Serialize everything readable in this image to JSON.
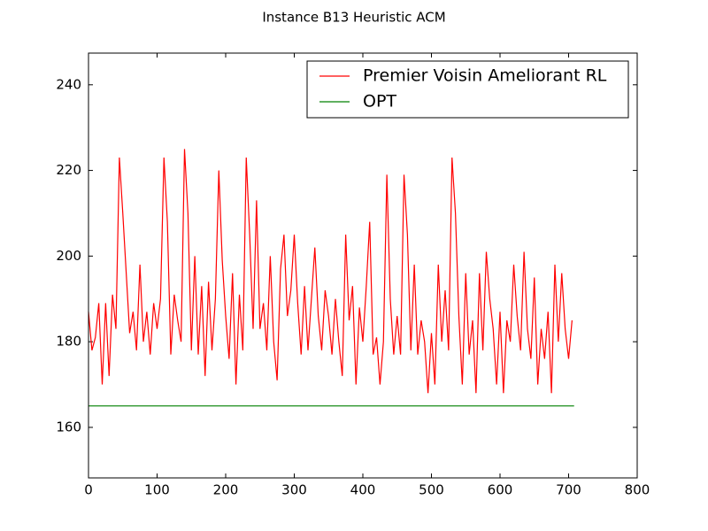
{
  "chart_data": {
    "type": "line",
    "title": "Instance B13 Heuristic ACM",
    "x": [
      0,
      5,
      10,
      15,
      20,
      25,
      30,
      35,
      40,
      45,
      50,
      55,
      60,
      65,
      70,
      75,
      80,
      85,
      90,
      95,
      100,
      105,
      110,
      115,
      120,
      125,
      130,
      135,
      140,
      145,
      150,
      155,
      160,
      165,
      170,
      175,
      180,
      185,
      190,
      195,
      200,
      205,
      210,
      215,
      220,
      225,
      230,
      235,
      240,
      245,
      250,
      255,
      260,
      265,
      270,
      275,
      280,
      285,
      290,
      295,
      300,
      305,
      310,
      315,
      320,
      325,
      330,
      335,
      340,
      345,
      350,
      355,
      360,
      365,
      370,
      375,
      380,
      385,
      390,
      395,
      400,
      405,
      410,
      415,
      420,
      425,
      430,
      435,
      440,
      445,
      450,
      455,
      460,
      465,
      470,
      475,
      480,
      485,
      490,
      495,
      500,
      505,
      510,
      515,
      520,
      525,
      530,
      535,
      540,
      545,
      550,
      555,
      560,
      565,
      570,
      575,
      580,
      585,
      590,
      595,
      600,
      605,
      610,
      615,
      620,
      625,
      630,
      635,
      640,
      645,
      650,
      655,
      660,
      665,
      670,
      675,
      680,
      685,
      690,
      695,
      700,
      705
    ],
    "series": [
      {
        "name": "Premier Voisin Ameliorant RL",
        "color": "#ff0000",
        "values": [
          187,
          178,
          181,
          189,
          170,
          189,
          172,
          191,
          183,
          223,
          210,
          196,
          182,
          187,
          178,
          198,
          180,
          187,
          177,
          189,
          183,
          190,
          223,
          208,
          177,
          191,
          185,
          180,
          225,
          210,
          178,
          200,
          177,
          193,
          172,
          194,
          178,
          190,
          220,
          199,
          186,
          176,
          196,
          170,
          191,
          178,
          223,
          205,
          183,
          213,
          183,
          189,
          178,
          200,
          180,
          171,
          197,
          205,
          186,
          192,
          205,
          189,
          177,
          193,
          178,
          190,
          202,
          186,
          178,
          192,
          186,
          177,
          190,
          180,
          172,
          205,
          185,
          193,
          170,
          188,
          180,
          193,
          208,
          177,
          181,
          170,
          180,
          219,
          190,
          177,
          186,
          177,
          219,
          205,
          178,
          198,
          177,
          185,
          180,
          168,
          182,
          170,
          198,
          180,
          192,
          178,
          223,
          210,
          186,
          170,
          196,
          177,
          185,
          168,
          196,
          178,
          201,
          190,
          183,
          170,
          187,
          168,
          185,
          180,
          198,
          186,
          178,
          201,
          183,
          176,
          195,
          170,
          183,
          176,
          187,
          168,
          198,
          180,
          196,
          183,
          176,
          185
        ]
      },
      {
        "name": "OPT",
        "color": "#008000",
        "x": [
          0,
          708
        ],
        "values": [
          165,
          165
        ]
      }
    ],
    "xlim": [
      0,
      800
    ],
    "xticks": [
      0,
      100,
      200,
      300,
      400,
      500,
      600,
      700,
      800
    ],
    "ylim": [
      148.2,
      247.4
    ],
    "yticks": [
      160,
      180,
      200,
      220,
      240
    ],
    "legend": "upper right"
  }
}
